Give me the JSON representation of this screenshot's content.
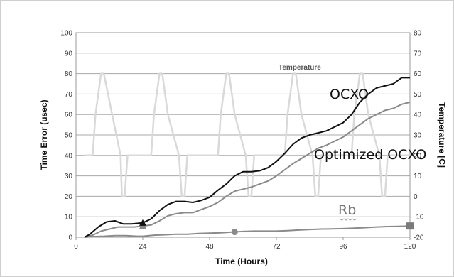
{
  "chart_data": {
    "type": "line",
    "xlabel": "Time (Hours)",
    "ylabel": "Time Error  (usec)",
    "y2label": "Temperature [C]",
    "xlim": [
      0,
      120
    ],
    "ylim": [
      0,
      100
    ],
    "y2lim": [
      -20,
      80
    ],
    "x_ticks": [
      "0",
      "24",
      "48",
      "72",
      "96",
      "120"
    ],
    "y_ticks": [
      "0",
      "10",
      "20",
      "30",
      "40",
      "50",
      "60",
      "70",
      "80",
      "90",
      "100"
    ],
    "y2_ticks": [
      "-20",
      "-10",
      "0",
      "10",
      "20",
      "30",
      "40",
      "50",
      "60",
      "70",
      "80"
    ],
    "grid": true,
    "annotations": {
      "temperature": "Temperature",
      "ocxo": "OCXO",
      "optimized": "Optimized OCXO",
      "rb": "Rb"
    },
    "series": [
      {
        "id": "ocxo",
        "axis": "left",
        "color": "#111111",
        "marker": "triangle",
        "marker_x": 24,
        "x": [
          3,
          5,
          8,
          11,
          14,
          17,
          20,
          24,
          27,
          30,
          33,
          36,
          39,
          42,
          45,
          48,
          51,
          54,
          57,
          60,
          63,
          66,
          69,
          72,
          75,
          78,
          81,
          84,
          87,
          90,
          93,
          96,
          99,
          102,
          105,
          108,
          111,
          114,
          117,
          120
        ],
        "y": [
          0,
          1.5,
          5,
          7.5,
          8,
          6.5,
          6.5,
          7,
          9,
          13,
          16,
          17.5,
          17.5,
          17,
          18,
          19.5,
          23,
          26,
          30,
          32,
          32,
          32.5,
          34,
          37,
          41,
          45.5,
          48.5,
          50,
          51,
          52,
          54,
          56,
          60,
          66,
          70,
          73,
          74,
          75,
          78,
          78
        ]
      },
      {
        "id": "optimized",
        "axis": "left",
        "color": "#8a8a8a",
        "marker": "triangle",
        "marker_x": 24,
        "x": [
          3,
          6,
          9,
          12,
          15,
          18,
          21,
          24,
          27,
          30,
          33,
          36,
          39,
          42,
          45,
          48,
          51,
          54,
          57,
          60,
          63,
          66,
          69,
          72,
          75,
          78,
          81,
          84,
          87,
          90,
          93,
          96,
          99,
          102,
          105,
          108,
          111,
          114,
          117,
          120
        ],
        "y": [
          0,
          1,
          3,
          4,
          5,
          5,
          5,
          5.5,
          6,
          8,
          10.5,
          11.5,
          12,
          12,
          13.5,
          15,
          17,
          20,
          22.5,
          23.5,
          24.5,
          26,
          27.5,
          30,
          33,
          36,
          38.5,
          41,
          43.5,
          45,
          47,
          49,
          52,
          55,
          58,
          60,
          62,
          63,
          65,
          66
        ]
      },
      {
        "id": "rb",
        "axis": "left",
        "color": "#8a8a8a",
        "marker": "circle",
        "marker_x": 57,
        "end_marker": "square",
        "x": [
          3,
          6,
          10,
          14,
          18,
          22,
          24,
          28,
          32,
          36,
          40,
          44,
          48,
          52,
          56,
          60,
          64,
          68,
          72,
          76,
          80,
          84,
          88,
          92,
          96,
          100,
          104,
          108,
          112,
          116,
          120
        ],
        "y": [
          0,
          0.3,
          0.5,
          0.8,
          0.8,
          0.5,
          0.5,
          1,
          1.2,
          1.5,
          1.5,
          1.8,
          2,
          2.2,
          2.5,
          2.8,
          3,
          3,
          3,
          3.2,
          3.5,
          3.8,
          4,
          4.1,
          4.2,
          4.4,
          4.7,
          5,
          5.2,
          5.3,
          5.5
        ]
      },
      {
        "id": "temperature",
        "axis": "right",
        "color": "#d9d9d9",
        "x": [
          3,
          6,
          7,
          9,
          10,
          13,
          16,
          16.5,
          17.5,
          18.5,
          21,
          27,
          28,
          30,
          31,
          33,
          37,
          38,
          39,
          40,
          43,
          51,
          52,
          54,
          55,
          57,
          61,
          62,
          63,
          64,
          67,
          75,
          76,
          78,
          79,
          81,
          85,
          86,
          87,
          88,
          91,
          99,
          100,
          102,
          103,
          105,
          109,
          110,
          111,
          112,
          115,
          120
        ],
        "y": [
          20,
          20,
          40,
          60,
          60,
          40,
          20,
          0,
          0,
          20,
          20,
          20,
          40,
          60,
          60,
          40,
          20,
          0,
          0,
          20,
          20,
          20,
          40,
          60,
          60,
          40,
          20,
          0,
          0,
          20,
          20,
          20,
          40,
          60,
          60,
          40,
          20,
          0,
          0,
          20,
          20,
          20,
          40,
          60,
          60,
          40,
          20,
          0,
          0,
          20,
          20,
          20
        ]
      }
    ]
  }
}
